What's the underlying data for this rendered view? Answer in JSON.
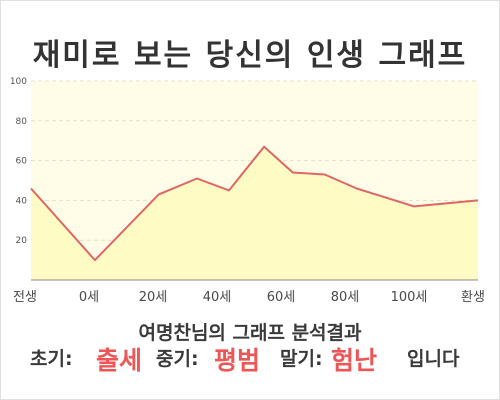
{
  "title": "재미로 보는 당신의 인생 그래프",
  "chart_data": {
    "type": "area",
    "x_categories": [
      "전생",
      "0세",
      "20세",
      "40세",
      "60세",
      "80세",
      "100세",
      "환생"
    ],
    "y_ticks": [
      20,
      40,
      60,
      80,
      100
    ],
    "ylim": [
      0,
      100
    ],
    "grid": true,
    "series": [
      {
        "points": [
          {
            "x": -20,
            "y": 46
          },
          {
            "x": 0,
            "y": 10
          },
          {
            "x": 20,
            "y": 43
          },
          {
            "x": 32,
            "y": 51
          },
          {
            "x": 42,
            "y": 45
          },
          {
            "x": 53,
            "y": 67
          },
          {
            "x": 62,
            "y": 54
          },
          {
            "x": 72,
            "y": 53
          },
          {
            "x": 82,
            "y": 46
          },
          {
            "x": 100,
            "y": 37
          },
          {
            "x": 120,
            "y": 40
          }
        ]
      }
    ]
  },
  "colors": {
    "plot_background": "#fffde8",
    "area_fill": "#fefcc4",
    "line": "#e06666",
    "accent_red": "#ef5555"
  },
  "result": {
    "heading": "여명찬님의 그래프 분석결과",
    "early_label": "초기:",
    "early_value": "출세",
    "mid_label": "중기:",
    "mid_value": "평범",
    "late_label": "말기:",
    "late_value": "험난",
    "ending": "입니다"
  }
}
